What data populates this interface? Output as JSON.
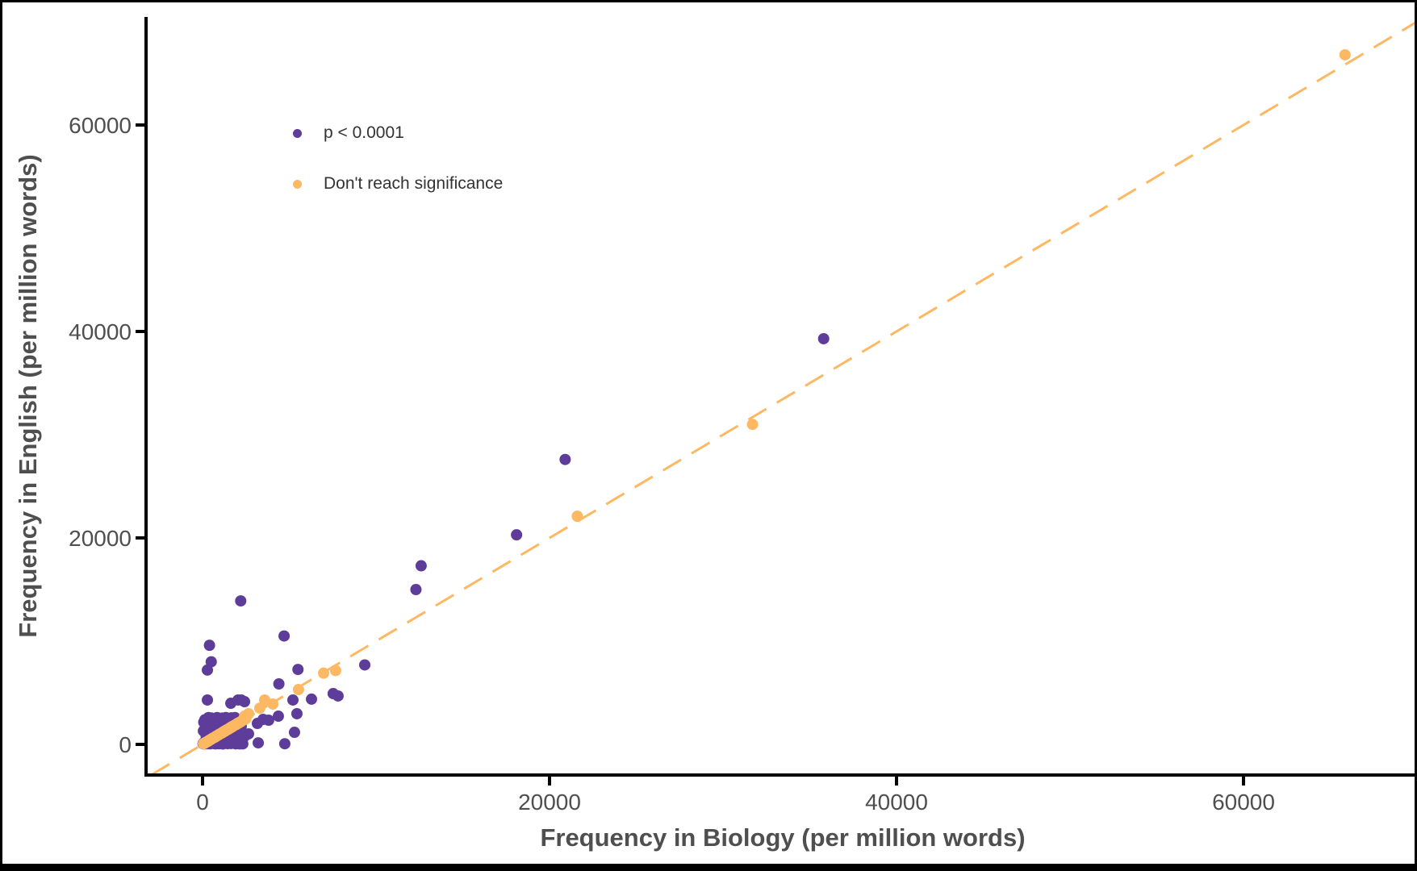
{
  "chart_data": {
    "type": "scatter",
    "title": "",
    "xlabel": "Frequency in Biology (per million words)",
    "ylabel": "Frequency in English (per million words)",
    "x_ticks": [
      0,
      20000,
      40000,
      60000
    ],
    "y_ticks": [
      0,
      20000,
      40000,
      60000
    ],
    "xlim": [
      -3250,
      70150
    ],
    "ylim": [
      -2950,
      70300
    ],
    "grid": false,
    "legend_position": "inside-top-left",
    "identity_line": {
      "equation": "y = x",
      "style": "dashed",
      "color": "#fdb863"
    },
    "series": [
      {
        "name": "p < 0.0001",
        "color": "#5e3c99",
        "points": [
          [
            35800,
            39300
          ],
          [
            20900,
            27600
          ],
          [
            18100,
            20300
          ],
          [
            12600,
            17300
          ],
          [
            12300,
            15000
          ],
          [
            2200,
            13900
          ],
          [
            4700,
            10500
          ],
          [
            400,
            9600
          ],
          [
            500,
            8000
          ],
          [
            280,
            7200
          ],
          [
            9350,
            7700
          ],
          [
            5500,
            7260
          ],
          [
            4400,
            5860
          ],
          [
            7530,
            4920
          ],
          [
            7810,
            4690
          ],
          [
            6280,
            4380
          ],
          [
            280,
            4300
          ],
          [
            5210,
            4300
          ],
          [
            1630,
            3980
          ],
          [
            2050,
            4300
          ],
          [
            2420,
            4140
          ],
          [
            2230,
            4300
          ],
          [
            3160,
            2030
          ],
          [
            3490,
            2420
          ],
          [
            3810,
            2340
          ],
          [
            4370,
            2730
          ],
          [
            5440,
            2970
          ],
          [
            5300,
            1170
          ],
          [
            3210,
            150
          ],
          [
            4740,
            60
          ],
          [
            2420,
            780
          ],
          [
            2650,
            1020
          ],
          [
            30,
            60
          ],
          [
            50,
            1300
          ],
          [
            70,
            2150
          ],
          [
            90,
            180
          ],
          [
            110,
            50
          ],
          [
            130,
            2380
          ],
          [
            150,
            1180
          ],
          [
            170,
            1830
          ],
          [
            190,
            100
          ],
          [
            210,
            780
          ],
          [
            230,
            1380
          ],
          [
            250,
            2020
          ],
          [
            270,
            900
          ],
          [
            290,
            60
          ],
          [
            300,
            1120
          ],
          [
            330,
            260
          ],
          [
            340,
            2600
          ],
          [
            360,
            80
          ],
          [
            380,
            1450
          ],
          [
            400,
            150
          ],
          [
            420,
            850
          ],
          [
            440,
            50
          ],
          [
            460,
            1250
          ],
          [
            480,
            350
          ],
          [
            500,
            2560
          ],
          [
            520,
            680
          ],
          [
            540,
            1560
          ],
          [
            560,
            220
          ],
          [
            580,
            1040
          ],
          [
            600,
            2470
          ],
          [
            620,
            480
          ],
          [
            640,
            1970
          ],
          [
            660,
            120
          ],
          [
            680,
            760
          ],
          [
            700,
            60
          ],
          [
            710,
            1640
          ],
          [
            740,
            410
          ],
          [
            760,
            50
          ],
          [
            780,
            2510
          ],
          [
            800,
            1320
          ],
          [
            830,
            100
          ],
          [
            840,
            2600
          ],
          [
            860,
            880
          ],
          [
            890,
            1600
          ],
          [
            920,
            380
          ],
          [
            950,
            60
          ],
          [
            960,
            2450
          ],
          [
            980,
            660
          ],
          [
            1010,
            2130
          ],
          [
            1040,
            1030
          ],
          [
            1060,
            2390
          ],
          [
            1080,
            540
          ],
          [
            1090,
            1280
          ],
          [
            1120,
            90
          ],
          [
            1140,
            2550
          ],
          [
            1170,
            40
          ],
          [
            1180,
            1660
          ],
          [
            1210,
            420
          ],
          [
            1230,
            1190
          ],
          [
            1260,
            2480
          ],
          [
            1280,
            600
          ],
          [
            1310,
            1990
          ],
          [
            1320,
            130
          ],
          [
            1340,
            2600
          ],
          [
            1360,
            910
          ],
          [
            1390,
            1580
          ],
          [
            1420,
            340
          ],
          [
            1440,
            1080
          ],
          [
            1450,
            70
          ],
          [
            1470,
            2430
          ],
          [
            1500,
            1420
          ],
          [
            1530,
            160
          ],
          [
            1550,
            980
          ],
          [
            1580,
            2350
          ],
          [
            1610,
            1240
          ],
          [
            1640,
            80
          ],
          [
            1660,
            2570
          ],
          [
            1680,
            820
          ],
          [
            1710,
            1530
          ],
          [
            1740,
            300
          ],
          [
            1760,
            1150
          ],
          [
            1790,
            2460
          ],
          [
            1820,
            1330
          ],
          [
            1860,
            120
          ],
          [
            1870,
            2600
          ],
          [
            1890,
            860
          ],
          [
            1910,
            50
          ],
          [
            1940,
            2100
          ],
          [
            1960,
            400
          ],
          [
            1990,
            70
          ],
          [
            2000,
            2300
          ],
          [
            2040,
            1400
          ],
          [
            2080,
            200
          ],
          [
            2100,
            970
          ],
          [
            2120,
            50
          ],
          [
            2140,
            2250
          ],
          [
            2180,
            1300
          ],
          [
            2200,
            60
          ],
          [
            2230,
            1750
          ],
          [
            2260,
            380
          ],
          [
            2290,
            1100
          ],
          [
            2320,
            50
          ]
        ]
      },
      {
        "name": "Don't reach significance",
        "color": "#fdb863",
        "points": [
          [
            65850,
            66800
          ],
          [
            31700,
            31000
          ],
          [
            21600,
            22100
          ],
          [
            7670,
            7150
          ],
          [
            6980,
            6900
          ],
          [
            5530,
            5310
          ],
          [
            4050,
            3910
          ],
          [
            3580,
            4300
          ],
          [
            3300,
            3510
          ],
          [
            2650,
            2970
          ],
          [
            2420,
            2730
          ],
          [
            2190,
            2190
          ],
          [
            50,
            60
          ],
          [
            100,
            90
          ],
          [
            150,
            160
          ],
          [
            200,
            210
          ],
          [
            300,
            290
          ],
          [
            350,
            340
          ],
          [
            400,
            410
          ],
          [
            500,
            490
          ],
          [
            550,
            560
          ],
          [
            600,
            610
          ],
          [
            700,
            690
          ],
          [
            750,
            740
          ],
          [
            800,
            810
          ],
          [
            900,
            890
          ],
          [
            950,
            960
          ],
          [
            1000,
            1010
          ],
          [
            1100,
            1090
          ],
          [
            1150,
            1140
          ],
          [
            1200,
            1210
          ],
          [
            1250,
            1260
          ],
          [
            1300,
            1290
          ],
          [
            1350,
            1360
          ],
          [
            1400,
            1410
          ],
          [
            1450,
            1440
          ],
          [
            1500,
            1490
          ],
          [
            1550,
            1540
          ],
          [
            1600,
            1610
          ],
          [
            1650,
            1660
          ],
          [
            1700,
            1690
          ],
          [
            1750,
            1760
          ],
          [
            1800,
            1810
          ],
          [
            1900,
            1890
          ],
          [
            1950,
            1940
          ],
          [
            2000,
            2010
          ],
          [
            2050,
            2060
          ],
          [
            2100,
            2090
          ],
          [
            2200,
            2180
          ],
          [
            2300,
            2310
          ],
          [
            2400,
            2420
          ],
          [
            2500,
            2490
          ]
        ]
      }
    ]
  },
  "colors": {
    "significant": "#5e3c99",
    "nonsignificant": "#fdb863",
    "identity_line": "#fdb863",
    "axis_text": "#4f4f4f",
    "axis_line": "#000000",
    "background": "#ffffff",
    "frame": "#000000"
  }
}
